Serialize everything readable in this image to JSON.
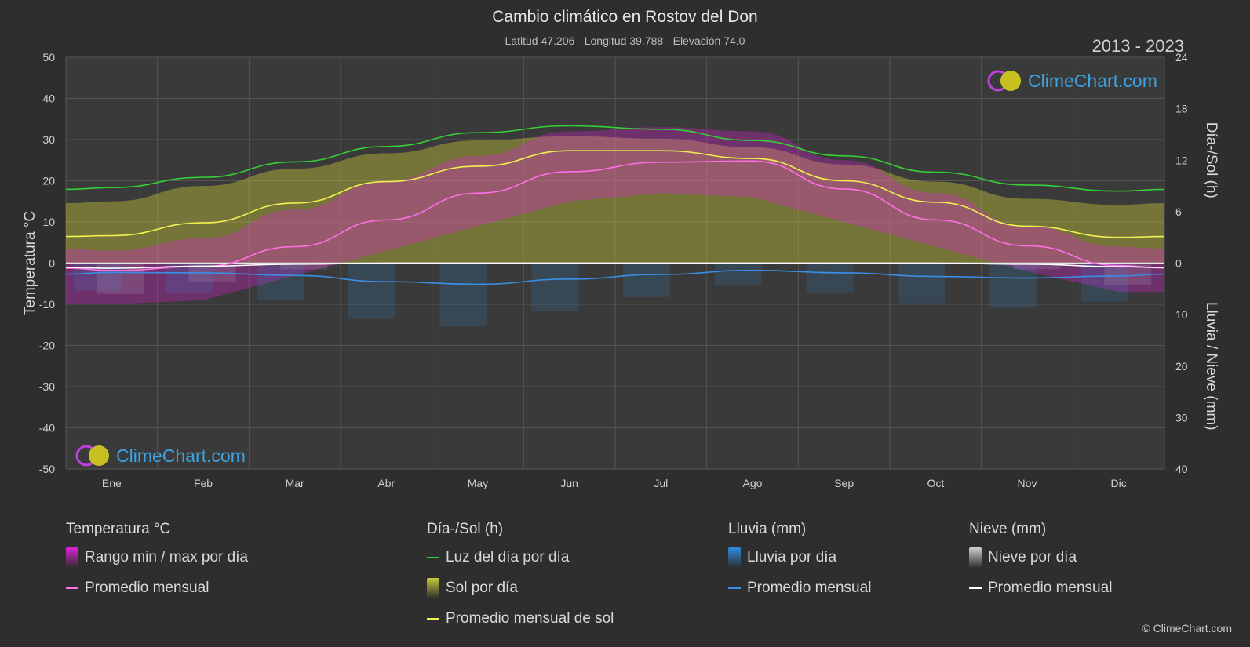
{
  "header": {
    "title": "Cambio climático en Rostov del Don",
    "subtitle": "Latitud 47.206 - Longitud 39.788 - Elevación 74.0",
    "years": "2013 - 2023"
  },
  "brand": {
    "logo_text": "ClimeChart.com",
    "copyright": "© ClimeChart.com"
  },
  "colors": {
    "background": "#2e2e2e",
    "temp_range": "#e020d8",
    "temp_avg": "#ff70e8",
    "daylight": "#34d034",
    "sunshine": "#c8c83a",
    "sunshine_avg": "#f0f050",
    "rain": "#2f8de0",
    "rain_avg": "#3a8ee6",
    "snow": "#cfcfcf",
    "snow_avg": "#ffffff"
  },
  "chart_data": {
    "type": "line",
    "categories": [
      "Ene",
      "Feb",
      "Mar",
      "Abr",
      "May",
      "Jun",
      "Jul",
      "Ago",
      "Sep",
      "Oct",
      "Nov",
      "Dic"
    ],
    "axes": {
      "left": {
        "label": "Temperatura °C",
        "ticks": [
          "50",
          "40",
          "30",
          "20",
          "10",
          "0",
          "-10",
          "-20",
          "-30",
          "-40",
          "-50"
        ],
        "range": [
          -50,
          50
        ]
      },
      "right_top": {
        "label": "Día-/Sol (h)",
        "ticks": [
          "24",
          "18",
          "12",
          "6",
          "0"
        ],
        "range": [
          0,
          24
        ]
      },
      "right_bottom": {
        "label": "Lluvia / Nieve (mm)",
        "ticks": [
          "0",
          "10",
          "20",
          "30",
          "40"
        ],
        "range": [
          0,
          40
        ]
      }
    },
    "series": [
      {
        "name": "Luz del día por día",
        "axis": "right_top",
        "values": [
          8.8,
          10.0,
          11.8,
          13.6,
          15.2,
          16.0,
          15.6,
          14.3,
          12.5,
          10.6,
          9.1,
          8.4
        ]
      },
      {
        "name": "Promedio mensual de sol",
        "axis": "right_top",
        "values": [
          3.2,
          4.7,
          7.0,
          9.5,
          11.3,
          13.1,
          13.1,
          12.2,
          9.6,
          7.1,
          4.3,
          3.0
        ]
      },
      {
        "name": "Promedio mensual",
        "group": "Temperatura °C",
        "axis": "left",
        "values": [
          -1.8,
          -0.8,
          4.0,
          10.5,
          17.0,
          22.2,
          24.5,
          24.8,
          18.0,
          10.5,
          4.2,
          -0.6
        ]
      },
      {
        "name": "Promedio mensual",
        "group": "Lluvia (mm)",
        "axis": "right_bottom",
        "values": [
          1.8,
          1.9,
          2.4,
          3.6,
          4.1,
          3.1,
          2.2,
          1.4,
          1.9,
          2.6,
          2.9,
          2.5
        ]
      },
      {
        "name": "Promedio mensual",
        "group": "Nieve (mm)",
        "axis": "right_bottom",
        "values": [
          1.0,
          0.6,
          0.2,
          0.0,
          0.0,
          0.0,
          0.0,
          0.0,
          0.0,
          0.0,
          0.2,
          0.7
        ]
      }
    ],
    "bands": {
      "sunshine_daily_max_h": [
        7.2,
        9.0,
        11.0,
        12.8,
        14.3,
        14.8,
        14.5,
        13.5,
        11.5,
        9.5,
        7.5,
        6.8
      ],
      "temp_max_c": [
        3,
        6,
        13,
        20,
        26,
        32,
        33,
        32,
        25,
        17,
        9,
        4
      ],
      "temp_min_c": [
        -10,
        -9,
        -3,
        3,
        9,
        15,
        17,
        16,
        10,
        4,
        -2,
        -7
      ]
    }
  },
  "legend": {
    "groups": [
      {
        "title": "Temperatura °C",
        "items": [
          {
            "label": "Rango min / max por día",
            "kind": "box",
            "color": "#e020d8"
          },
          {
            "label": "Promedio mensual",
            "kind": "line",
            "color": "#ff70e8"
          }
        ]
      },
      {
        "title": "Día-/Sol (h)",
        "items": [
          {
            "label": "Luz del día por día",
            "kind": "line",
            "color": "#34d034"
          },
          {
            "label": "Sol por día",
            "kind": "box",
            "color": "#c8c83a"
          },
          {
            "label": "Promedio mensual de sol",
            "kind": "line",
            "color": "#f0f050"
          }
        ]
      },
      {
        "title": "Lluvia (mm)",
        "items": [
          {
            "label": "Lluvia por día",
            "kind": "box",
            "color": "#2f8de0"
          },
          {
            "label": "Promedio mensual",
            "kind": "line",
            "color": "#3a8ee6"
          }
        ]
      },
      {
        "title": "Nieve (mm)",
        "items": [
          {
            "label": "Nieve por día",
            "kind": "box",
            "color": "#cfcfcf"
          },
          {
            "label": "Promedio mensual",
            "kind": "line",
            "color": "#ffffff"
          }
        ]
      }
    ]
  }
}
